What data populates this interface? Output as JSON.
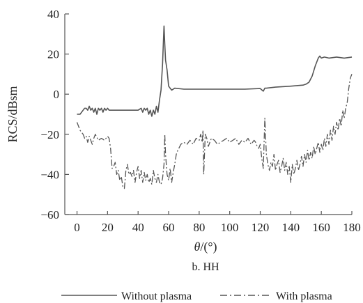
{
  "chart_data": {
    "type": "line",
    "title": "",
    "caption": "b. HH",
    "xlabel_var": "θ",
    "xlabel_unit": "/(°)",
    "ylabel": "RCS/dBsm",
    "xlim": [
      -8,
      180
    ],
    "ylim": [
      -60,
      40
    ],
    "x_ticks": [
      0,
      20,
      40,
      60,
      80,
      100,
      120,
      140,
      160,
      180
    ],
    "y_ticks": [
      -60,
      -40,
      -20,
      0,
      20,
      40
    ],
    "legend_position": "bottom",
    "grid": false,
    "series": [
      {
        "name": "Without plasma",
        "style": "solid",
        "color": "#555555",
        "x": [
          0,
          2,
          4,
          5,
          6,
          7,
          8,
          9,
          10,
          11,
          12,
          13,
          14,
          15,
          16,
          17,
          18,
          19,
          20,
          21,
          22,
          25,
          30,
          35,
          40,
          42,
          43,
          44,
          45,
          46,
          47,
          48,
          49,
          50,
          51,
          52,
          53,
          54,
          55,
          56,
          56.5,
          57,
          57.5,
          58,
          59,
          60,
          61,
          62,
          64,
          70,
          80,
          90,
          100,
          110,
          120,
          122,
          123,
          124,
          130,
          140,
          148,
          150,
          152,
          154,
          156,
          158,
          159,
          160,
          162,
          165,
          170,
          175,
          180
        ],
        "y": [
          -10,
          -10,
          -8,
          -7,
          -7,
          -8,
          -6,
          -8,
          -7,
          -9,
          -7,
          -10,
          -7,
          -8,
          -7,
          -9,
          -7,
          -8,
          -7,
          -8,
          -8,
          -8,
          -8,
          -8,
          -8,
          -7,
          -9,
          -7,
          -8,
          -7,
          -10,
          -8,
          -11,
          -8,
          -10,
          -6,
          -9,
          -3,
          2,
          15,
          25,
          34,
          25,
          17,
          12,
          4,
          3,
          2,
          3,
          2.5,
          2.5,
          2.5,
          2.5,
          2.5,
          2.8,
          1.5,
          3,
          3,
          3.5,
          4,
          4.5,
          5,
          6,
          9,
          14,
          18,
          19,
          18,
          18.5,
          18,
          18.5,
          18,
          18.5
        ]
      },
      {
        "name": "With plasma",
        "style": "dashdot",
        "color": "#555555",
        "x": [
          0,
          2,
          4,
          5,
          6,
          7,
          8,
          9,
          10,
          11,
          12,
          14,
          16,
          18,
          20,
          21,
          22,
          23,
          24,
          25,
          26,
          27,
          28,
          29,
          30,
          31,
          32,
          33,
          34,
          35,
          36,
          37,
          38,
          39,
          40,
          41,
          42,
          43,
          44,
          45,
          46,
          47,
          48,
          49,
          50,
          51,
          52,
          53,
          54,
          55,
          56,
          57,
          57.5,
          58,
          59,
          60,
          61,
          62,
          63,
          64,
          65,
          66,
          68,
          70,
          72,
          74,
          76,
          78,
          80,
          81,
          82,
          82.5,
          83,
          84,
          85,
          86,
          87,
          88,
          90,
          92,
          94,
          96,
          98,
          100,
          102,
          104,
          106,
          108,
          110,
          112,
          114,
          116,
          117,
          118,
          119,
          120,
          121,
          122,
          123,
          124,
          125,
          126,
          127,
          128,
          129,
          130,
          131,
          132,
          133,
          134,
          135,
          136,
          137,
          138,
          139,
          140,
          141,
          142,
          143,
          144,
          145,
          146,
          147,
          148,
          149,
          150,
          151,
          152,
          153,
          154,
          155,
          156,
          157,
          158,
          159,
          160,
          161,
          162,
          163,
          164,
          165,
          166,
          167,
          168,
          169,
          170,
          171,
          172,
          173,
          174,
          175,
          176,
          177,
          178,
          179,
          180
        ],
        "y": [
          -14,
          -18,
          -20,
          -22,
          -21,
          -24,
          -21,
          -23,
          -25,
          -22,
          -20,
          -23,
          -22,
          -23,
          -21,
          -22,
          -27,
          -37,
          -36,
          -34,
          -40,
          -38,
          -43,
          -41,
          -46,
          -47,
          -38,
          -35,
          -40,
          -39,
          -41,
          -38,
          -44,
          -39,
          -36,
          -42,
          -38,
          -44,
          -39,
          -43,
          -40,
          -44,
          -42,
          -45,
          -38,
          -42,
          -44,
          -40,
          -44,
          -45,
          -42,
          -35,
          -20,
          -30,
          -40,
          -43,
          -37,
          -44,
          -39,
          -35,
          -30,
          -28,
          -25,
          -24,
          -25,
          -23,
          -25,
          -22,
          -23,
          -20,
          -24,
          -18,
          -40,
          -20,
          -22,
          -26,
          -24,
          -22,
          -23,
          -25,
          -24,
          -23,
          -22,
          -24,
          -23,
          -22,
          -25,
          -23,
          -24,
          -22,
          -25,
          -23,
          -24,
          -26,
          -27,
          -25,
          -32,
          -37,
          -12,
          -30,
          -35,
          -38,
          -34,
          -36,
          -30,
          -38,
          -35,
          -33,
          -39,
          -36,
          -32,
          -38,
          -34,
          -40,
          -36,
          -44,
          -35,
          -40,
          -37,
          -33,
          -38,
          -35,
          -31,
          -36,
          -30,
          -34,
          -28,
          -33,
          -29,
          -32,
          -26,
          -30,
          -27,
          -24,
          -29,
          -25,
          -28,
          -22,
          -26,
          -20,
          -25,
          -18,
          -23,
          -16,
          -20,
          -14,
          -18,
          -12,
          -16,
          -8,
          -12,
          -7,
          -4,
          3,
          8,
          10
        ]
      }
    ]
  }
}
